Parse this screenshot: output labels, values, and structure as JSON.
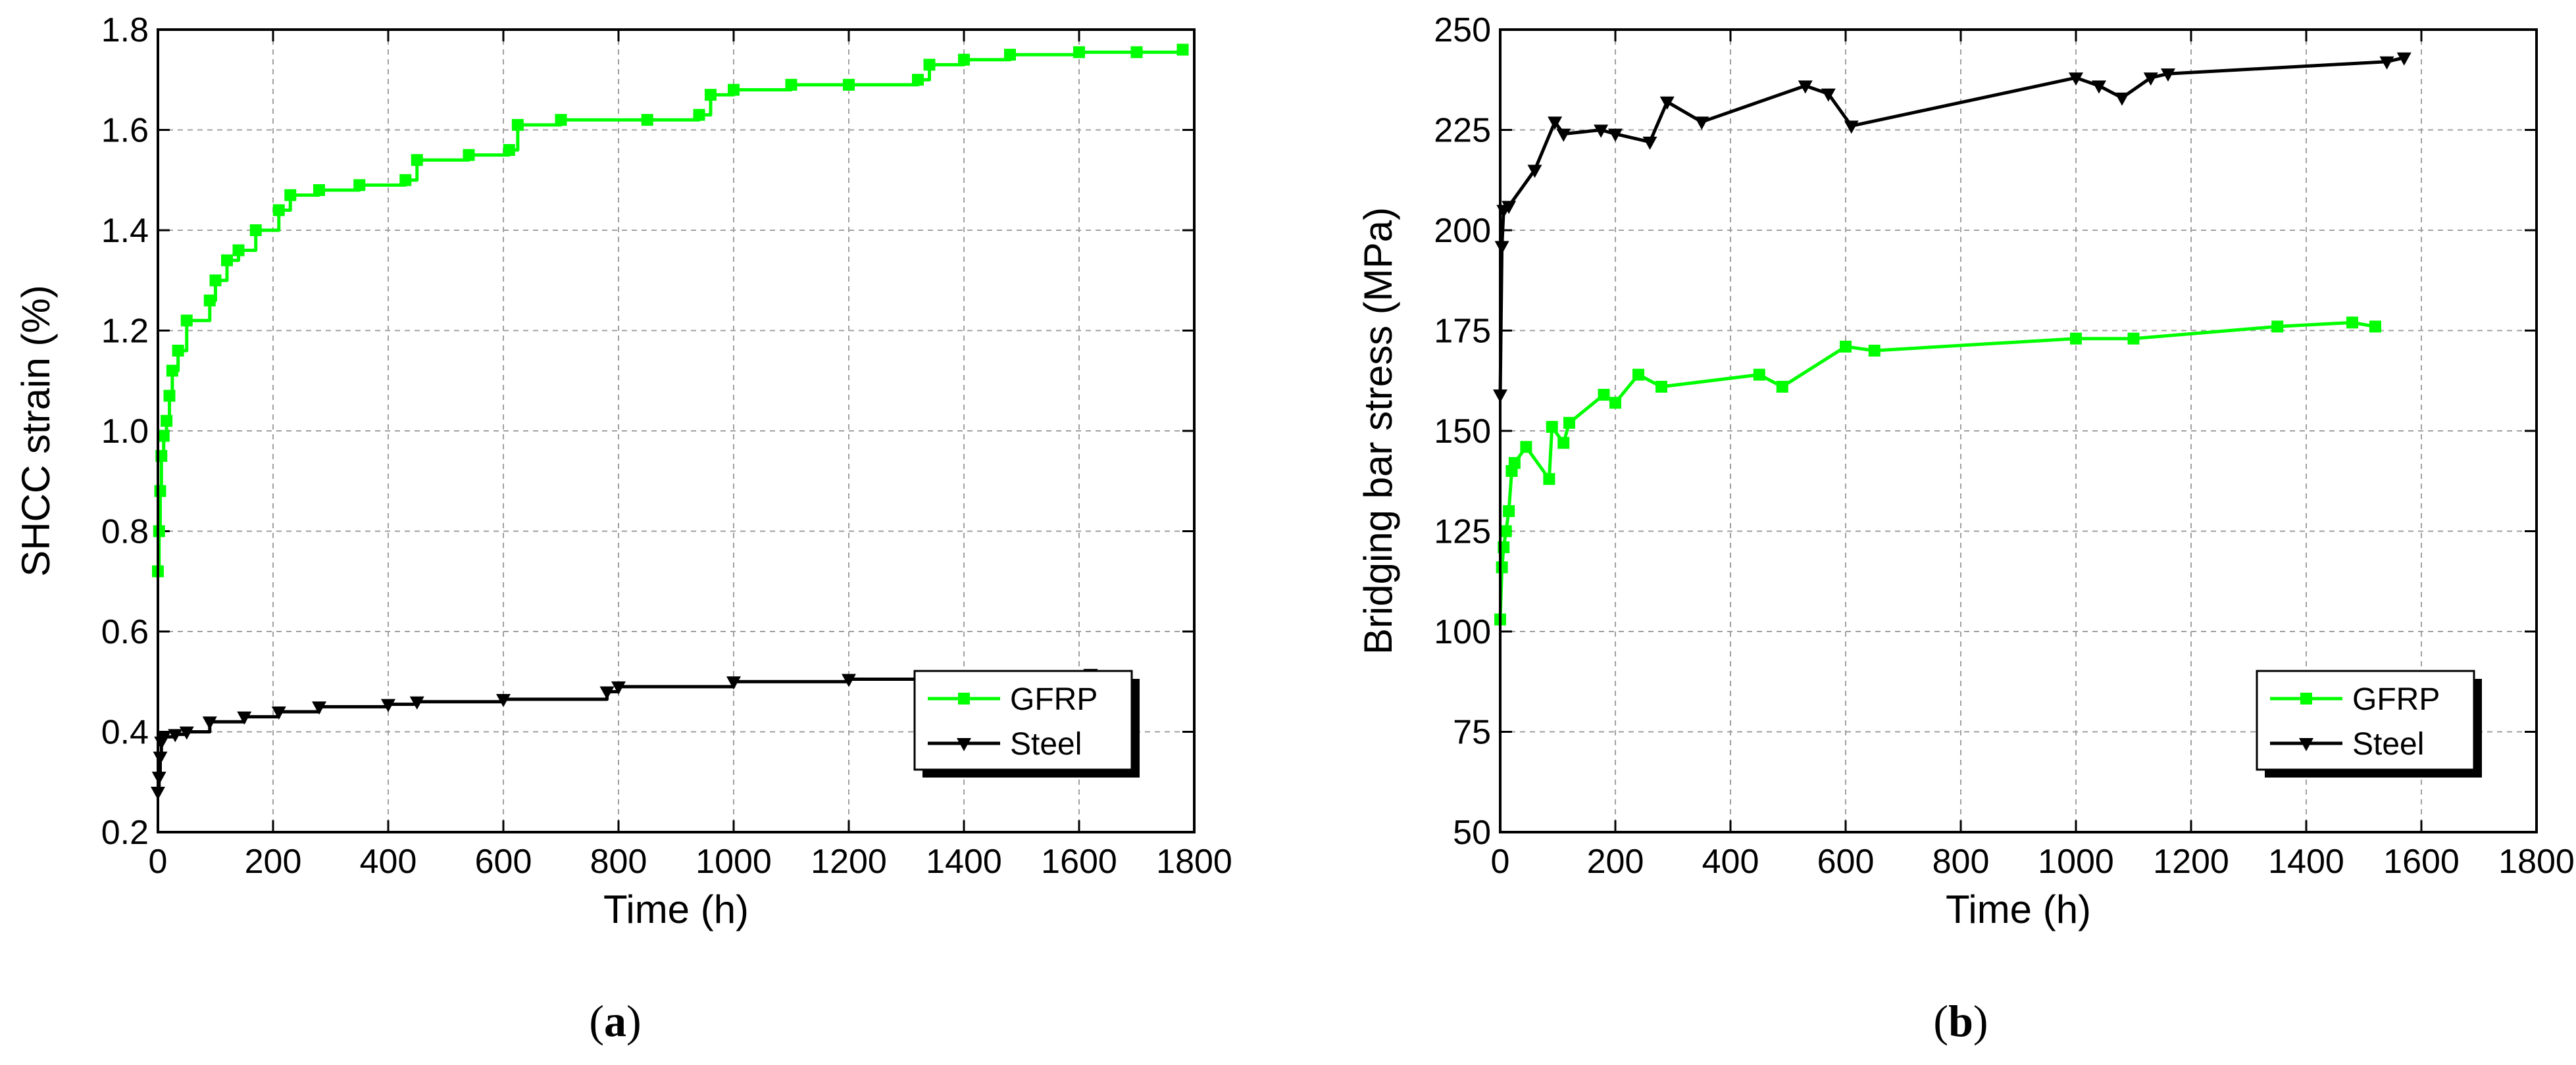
{
  "figure": {
    "panels": [
      {
        "caption_prefix": "(",
        "caption_letter": "a",
        "caption_suffix": ")"
      },
      {
        "caption_prefix": "(",
        "caption_letter": "b",
        "caption_suffix": ")"
      }
    ]
  },
  "colors": {
    "GFRP": "#00ff00",
    "Steel": "#000000"
  },
  "chart_data": [
    {
      "type": "line",
      "xlabel": "Time (h)",
      "ylabel": "SHCC strain (%)",
      "xlim": [
        0,
        1800
      ],
      "ylim": [
        0.2,
        1.8
      ],
      "xticks": [
        0,
        200,
        400,
        600,
        800,
        1000,
        1200,
        1400,
        1600,
        1800
      ],
      "yticks": [
        0.2,
        0.4,
        0.6,
        0.8,
        1.0,
        1.2,
        1.4,
        1.6,
        1.8
      ],
      "ytick_labels": [
        "0.2",
        "0.4",
        "0.6",
        "0.8",
        "1.0",
        "1.2",
        "1.4",
        "1.6",
        "1.8"
      ],
      "grid": true,
      "legend_position": "bottom-right",
      "series": [
        {
          "name": "GFRP",
          "color": "#00ff00",
          "marker": "square",
          "step": true,
          "points": [
            [
              0,
              0.72
            ],
            [
              2,
              0.8
            ],
            [
              4,
              0.88
            ],
            [
              6,
              0.95
            ],
            [
              10,
              0.99
            ],
            [
              15,
              1.02
            ],
            [
              20,
              1.07
            ],
            [
              25,
              1.12
            ],
            [
              35,
              1.16
            ],
            [
              50,
              1.22
            ],
            [
              90,
              1.26
            ],
            [
              100,
              1.3
            ],
            [
              120,
              1.34
            ],
            [
              140,
              1.36
            ],
            [
              170,
              1.4
            ],
            [
              210,
              1.44
            ],
            [
              230,
              1.47
            ],
            [
              280,
              1.48
            ],
            [
              350,
              1.49
            ],
            [
              430,
              1.5
            ],
            [
              450,
              1.54
            ],
            [
              540,
              1.55
            ],
            [
              610,
              1.56
            ],
            [
              625,
              1.61
            ],
            [
              700,
              1.62
            ],
            [
              850,
              1.62
            ],
            [
              940,
              1.63
            ],
            [
              960,
              1.67
            ],
            [
              1000,
              1.68
            ],
            [
              1100,
              1.69
            ],
            [
              1200,
              1.69
            ],
            [
              1320,
              1.7
            ],
            [
              1340,
              1.73
            ],
            [
              1400,
              1.74
            ],
            [
              1480,
              1.75
            ],
            [
              1600,
              1.755
            ],
            [
              1700,
              1.755
            ],
            [
              1780,
              1.76
            ]
          ]
        },
        {
          "name": "Steel",
          "color": "#000000",
          "marker": "triangle-down",
          "step": true,
          "points": [
            [
              0,
              0.28
            ],
            [
              2,
              0.31
            ],
            [
              4,
              0.35
            ],
            [
              6,
              0.38
            ],
            [
              10,
              0.39
            ],
            [
              30,
              0.395
            ],
            [
              50,
              0.4
            ],
            [
              90,
              0.42
            ],
            [
              150,
              0.43
            ],
            [
              210,
              0.44
            ],
            [
              280,
              0.45
            ],
            [
              400,
              0.455
            ],
            [
              450,
              0.46
            ],
            [
              600,
              0.465
            ],
            [
              780,
              0.48
            ],
            [
              800,
              0.49
            ],
            [
              1000,
              0.5
            ],
            [
              1200,
              0.505
            ],
            [
              1400,
              0.51
            ],
            [
              1620,
              0.515
            ]
          ]
        }
      ]
    },
    {
      "type": "line",
      "xlabel": "Time (h)",
      "ylabel": "Bridging bar stress (MPa)",
      "xlim": [
        0,
        1800
      ],
      "ylim": [
        50,
        250
      ],
      "xticks": [
        0,
        200,
        400,
        600,
        800,
        1000,
        1200,
        1400,
        1600,
        1800
      ],
      "yticks": [
        50,
        75,
        100,
        125,
        150,
        175,
        200,
        225,
        250
      ],
      "ytick_labels": [
        "50",
        "75",
        "100",
        "125",
        "150",
        "175",
        "200",
        "225",
        "250"
      ],
      "grid": true,
      "legend_position": "bottom-right",
      "series": [
        {
          "name": "GFRP",
          "color": "#00ff00",
          "marker": "square",
          "step": false,
          "points": [
            [
              0,
              103
            ],
            [
              3,
              116
            ],
            [
              6,
              121
            ],
            [
              10,
              125
            ],
            [
              15,
              130
            ],
            [
              20,
              140
            ],
            [
              25,
              142
            ],
            [
              45,
              146
            ],
            [
              85,
              138
            ],
            [
              90,
              151
            ],
            [
              110,
              147
            ],
            [
              120,
              152
            ],
            [
              180,
              159
            ],
            [
              200,
              157
            ],
            [
              240,
              164
            ],
            [
              280,
              161
            ],
            [
              450,
              164
            ],
            [
              490,
              161
            ],
            [
              600,
              171
            ],
            [
              650,
              170
            ],
            [
              1000,
              173
            ],
            [
              1100,
              173
            ],
            [
              1350,
              176
            ],
            [
              1480,
              177
            ],
            [
              1520,
              176
            ]
          ]
        },
        {
          "name": "Steel",
          "color": "#000000",
          "marker": "triangle-down",
          "step": false,
          "points": [
            [
              0,
              159
            ],
            [
              3,
              196
            ],
            [
              6,
              205
            ],
            [
              15,
              206
            ],
            [
              60,
              215
            ],
            [
              95,
              227
            ],
            [
              110,
              224
            ],
            [
              175,
              225
            ],
            [
              200,
              224
            ],
            [
              260,
              222
            ],
            [
              290,
              232
            ],
            [
              350,
              227
            ],
            [
              530,
              236
            ],
            [
              570,
              234
            ],
            [
              610,
              226
            ],
            [
              1000,
              238
            ],
            [
              1040,
              236
            ],
            [
              1080,
              233
            ],
            [
              1130,
              238
            ],
            [
              1160,
              239
            ],
            [
              1540,
              242
            ],
            [
              1570,
              243
            ]
          ]
        }
      ]
    }
  ]
}
